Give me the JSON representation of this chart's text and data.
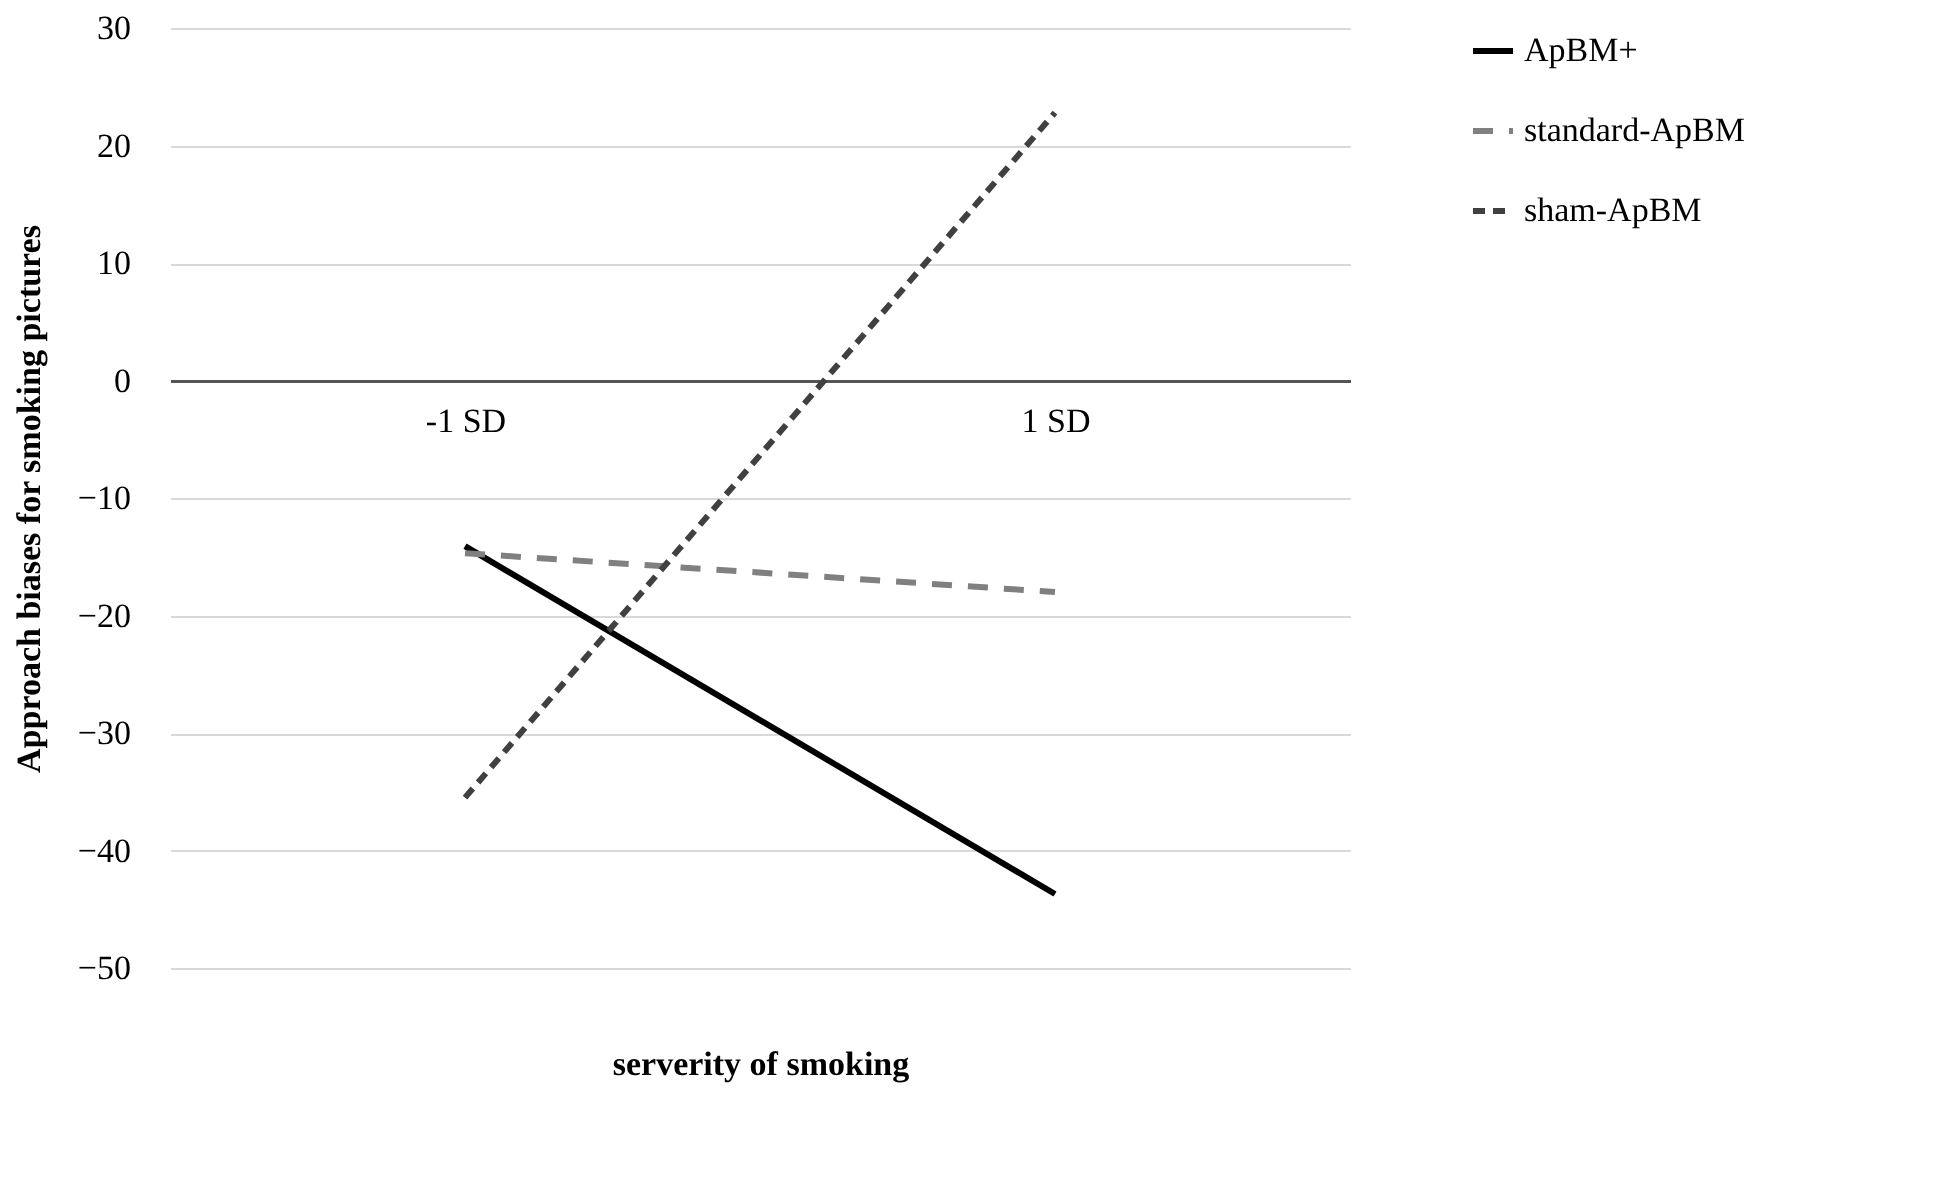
{
  "chart_data": {
    "type": "line",
    "xlabel": "serverity of smoking",
    "ylabel": "Approach biases for smoking pictures",
    "categories": [
      "-1 SD",
      "1 SD"
    ],
    "series": [
      {
        "name": "ApBM+",
        "color": "#000000",
        "line_style": "solid",
        "values": [
          -14.1,
          -43.7
        ]
      },
      {
        "name": "standard-ApBM",
        "color": "#808080",
        "line_style": "dashed",
        "values": [
          -14.7,
          -18.0
        ]
      },
      {
        "name": "sham-ApBM",
        "color": "#404040",
        "line_style": "dotted",
        "values": [
          -35.5,
          22.8
        ]
      }
    ],
    "ylim": [
      -50,
      30
    ],
    "yticks": [
      -50,
      -40,
      -30,
      -20,
      -10,
      0,
      10,
      20,
      30
    ],
    "grid": "y",
    "legend": "top right",
    "marker": "none"
  }
}
